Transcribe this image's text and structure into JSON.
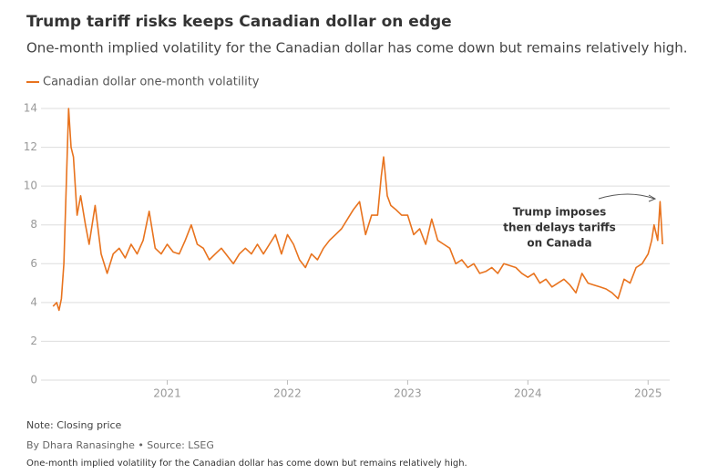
{
  "chart_data": {
    "type": "line",
    "title": "Trump tariff risks keeps Canadian dollar on edge",
    "subtitle": "One-month implied volatility for the Canadian dollar has come down but remains relatively high.",
    "x": [
      2020.05,
      2020.08,
      2020.1,
      2020.12,
      2020.14,
      2020.16,
      2020.18,
      2020.2,
      2020.22,
      2020.25,
      2020.28,
      2020.32,
      2020.35,
      2020.4,
      2020.45,
      2020.5,
      2020.55,
      2020.6,
      2020.65,
      2020.7,
      2020.75,
      2020.8,
      2020.85,
      2020.9,
      2020.95,
      2021.0,
      2021.05,
      2021.1,
      2021.15,
      2021.2,
      2021.25,
      2021.3,
      2021.35,
      2021.4,
      2021.45,
      2021.5,
      2021.55,
      2021.6,
      2021.65,
      2021.7,
      2021.75,
      2021.8,
      2021.85,
      2021.9,
      2021.95,
      2022.0,
      2022.05,
      2022.1,
      2022.15,
      2022.2,
      2022.25,
      2022.3,
      2022.35,
      2022.4,
      2022.45,
      2022.5,
      2022.55,
      2022.6,
      2022.65,
      2022.7,
      2022.75,
      2022.78,
      2022.8,
      2022.83,
      2022.86,
      2022.9,
      2022.95,
      2023.0,
      2023.05,
      2023.1,
      2023.15,
      2023.2,
      2023.25,
      2023.3,
      2023.35,
      2023.4,
      2023.45,
      2023.5,
      2023.55,
      2023.6,
      2023.65,
      2023.7,
      2023.75,
      2023.8,
      2023.85,
      2023.9,
      2023.95,
      2024.0,
      2024.05,
      2024.1,
      2024.15,
      2024.2,
      2024.25,
      2024.3,
      2024.35,
      2024.4,
      2024.45,
      2024.5,
      2024.55,
      2024.6,
      2024.65,
      2024.7,
      2024.75,
      2024.8,
      2024.85,
      2024.9,
      2024.95,
      2025.0,
      2025.03,
      2025.05,
      2025.08,
      2025.1,
      2025.12
    ],
    "series": [
      {
        "name": "Canadian dollar one-month volatility",
        "color": "#e8731e",
        "values": [
          3.8,
          4.0,
          3.6,
          4.2,
          6.0,
          10.0,
          14.0,
          12.0,
          11.5,
          8.5,
          9.5,
          8.0,
          7.0,
          9.0,
          6.5,
          5.5,
          6.5,
          6.8,
          6.3,
          7.0,
          6.5,
          7.2,
          8.7,
          6.8,
          6.5,
          7.0,
          6.6,
          6.5,
          7.2,
          8.0,
          7.0,
          6.8,
          6.2,
          6.5,
          6.8,
          6.4,
          6.0,
          6.5,
          6.8,
          6.5,
          7.0,
          6.5,
          7.0,
          7.5,
          6.5,
          7.5,
          7.0,
          6.2,
          5.8,
          6.5,
          6.2,
          6.8,
          7.2,
          7.5,
          7.8,
          8.3,
          8.8,
          9.2,
          7.5,
          8.5,
          8.5,
          10.5,
          11.5,
          9.5,
          9.0,
          8.8,
          8.5,
          8.5,
          7.5,
          7.8,
          7.0,
          8.3,
          7.2,
          7.0,
          6.8,
          6.0,
          6.2,
          5.8,
          6.0,
          5.5,
          5.6,
          5.8,
          5.5,
          6.0,
          5.9,
          5.8,
          5.5,
          5.3,
          5.5,
          5.0,
          5.2,
          4.8,
          5.0,
          5.2,
          4.9,
          4.5,
          5.5,
          5.0,
          4.9,
          4.8,
          4.7,
          4.5,
          4.2,
          5.2,
          5.0,
          5.8,
          6.0,
          6.5,
          7.2,
          8.0,
          7.2,
          9.2,
          7.0
        ]
      }
    ],
    "xlim": [
      2019.95,
      2025.18
    ],
    "xticks": [
      2021,
      2022,
      2023,
      2024,
      2025
    ],
    "ylim": [
      0,
      14
    ],
    "yticks": [
      0,
      2,
      4,
      6,
      8,
      10,
      12,
      14
    ],
    "grid": true,
    "annotation": [
      "Trump imposes",
      "then delays tariffs",
      "on Canada"
    ],
    "note": "Note: Closing price",
    "byline": "By Dhara Ranasinghe  • Source: LSEG",
    "caption": "One-month implied volatility for the Canadian dollar has come down but remains relatively high."
  }
}
